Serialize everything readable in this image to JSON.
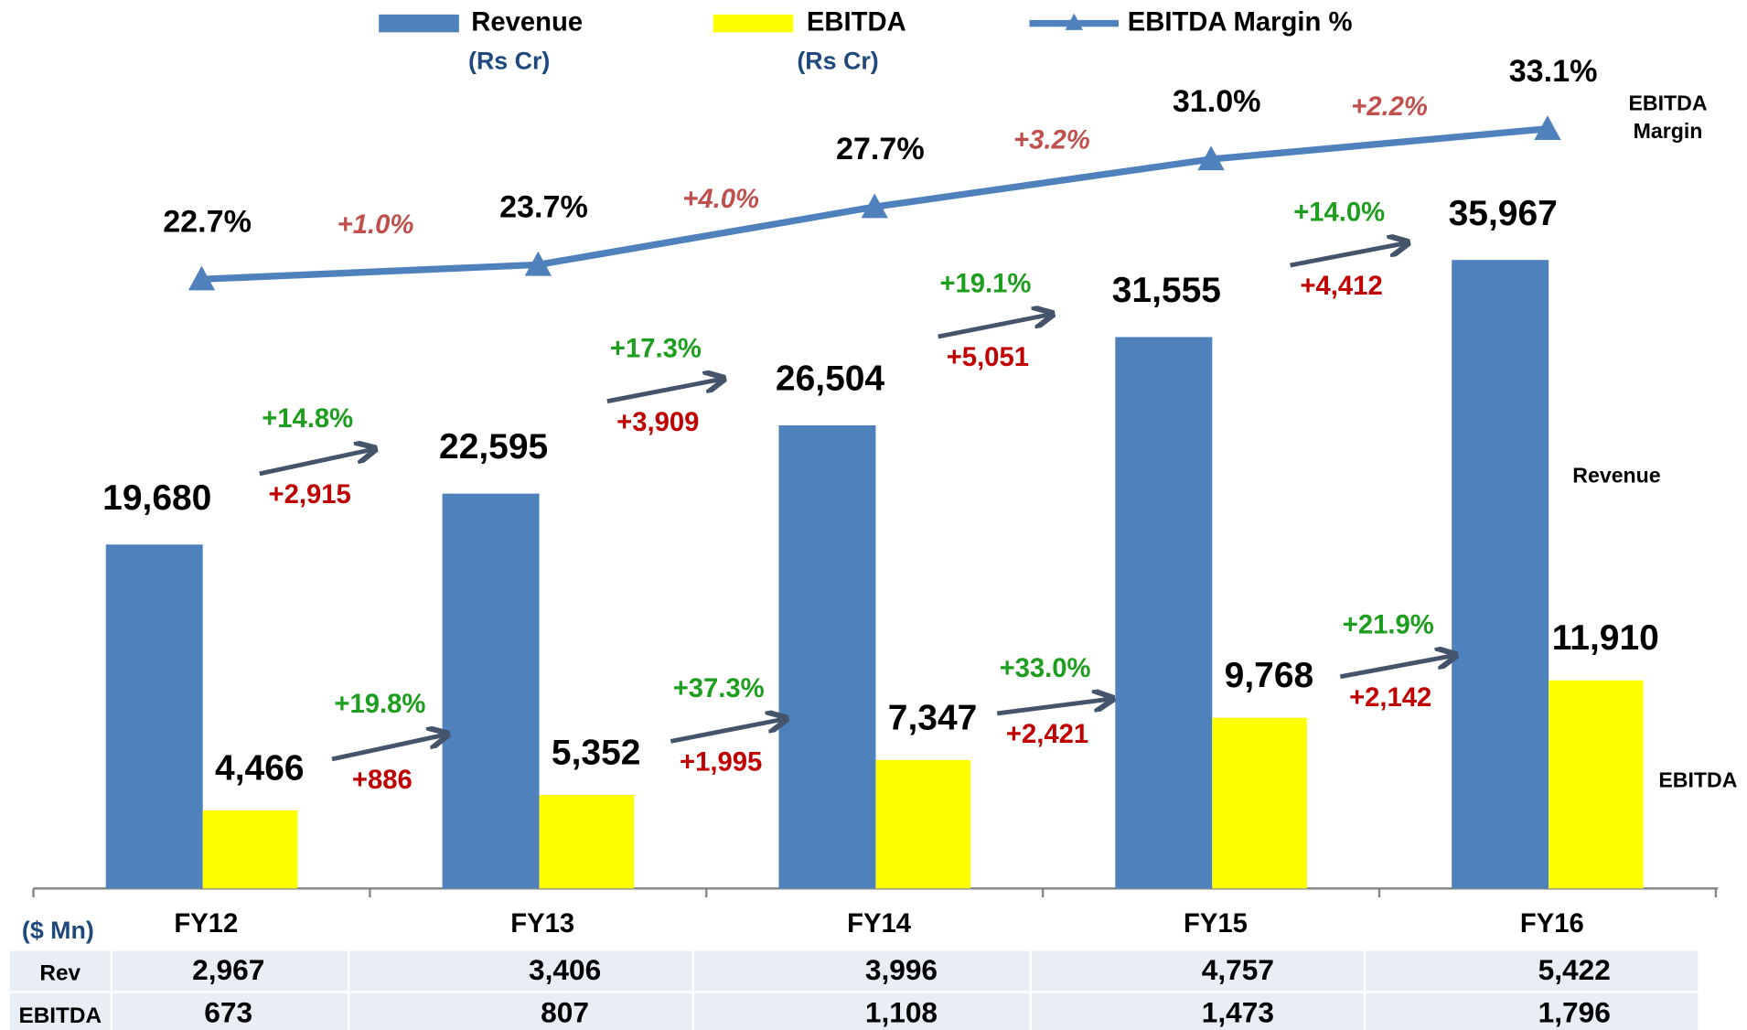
{
  "chart_data": {
    "type": "bar",
    "categories": [
      "FY12",
      "FY13",
      "FY14",
      "FY15",
      "FY16"
    ],
    "ylim": [
      0,
      40000
    ],
    "y2lim": [
      0,
      40
    ],
    "series": [
      {
        "name": "Revenue",
        "unit": "(Rs Cr)",
        "color": "#4f81bd",
        "values": [
          19680,
          22595,
          26504,
          31555,
          35967
        ],
        "value_labels": [
          "19,680",
          "22,595",
          "26,504",
          "31,555",
          "35,967"
        ]
      },
      {
        "name": "EBITDA",
        "unit": "(Rs Cr)",
        "color": "#ffff00",
        "values": [
          4466,
          5352,
          7347,
          9768,
          11910
        ],
        "value_labels": [
          "4,466",
          "5,352",
          "7,347",
          "9,768",
          "11,910"
        ]
      },
      {
        "name": "EBITDA Margin %",
        "type": "line",
        "axis": "y2",
        "color": "#4f81bd",
        "values": [
          22.7,
          23.7,
          27.7,
          31.0,
          33.1
        ],
        "value_labels": [
          "22.7%",
          "23.7%",
          "27.7%",
          "31.0%",
          "33.1%"
        ]
      }
    ],
    "series_labels": {
      "margin": [
        "EBITDA",
        "Margin"
      ],
      "revenue": "Revenue",
      "ebitda": "EBITDA"
    },
    "annotations": {
      "revenue_growth_pct": [
        "+14.8%",
        "+17.3%",
        "+19.1%",
        "+14.0%"
      ],
      "revenue_growth_abs": [
        "+2,915",
        "+3,909",
        "+5,051",
        "+4,412"
      ],
      "ebitda_growth_pct": [
        "+19.8%",
        "+37.3%",
        "+33.0%",
        "+21.9%"
      ],
      "ebitda_growth_abs": [
        "+886",
        "+1,995",
        "+2,421",
        "+2,142"
      ],
      "margin_change": [
        "+1.0%",
        "+4.0%",
        "+3.2%",
        "+2.2%"
      ]
    }
  },
  "table": {
    "unit": "($ Mn)",
    "rows": [
      {
        "label": "Rev",
        "values": [
          "2,967",
          "3,406",
          "3,996",
          "4,757",
          "5,422"
        ]
      },
      {
        "label": "EBITDA",
        "values": [
          "673",
          "807",
          "1,108",
          "1,473",
          "1,796"
        ]
      }
    ]
  }
}
